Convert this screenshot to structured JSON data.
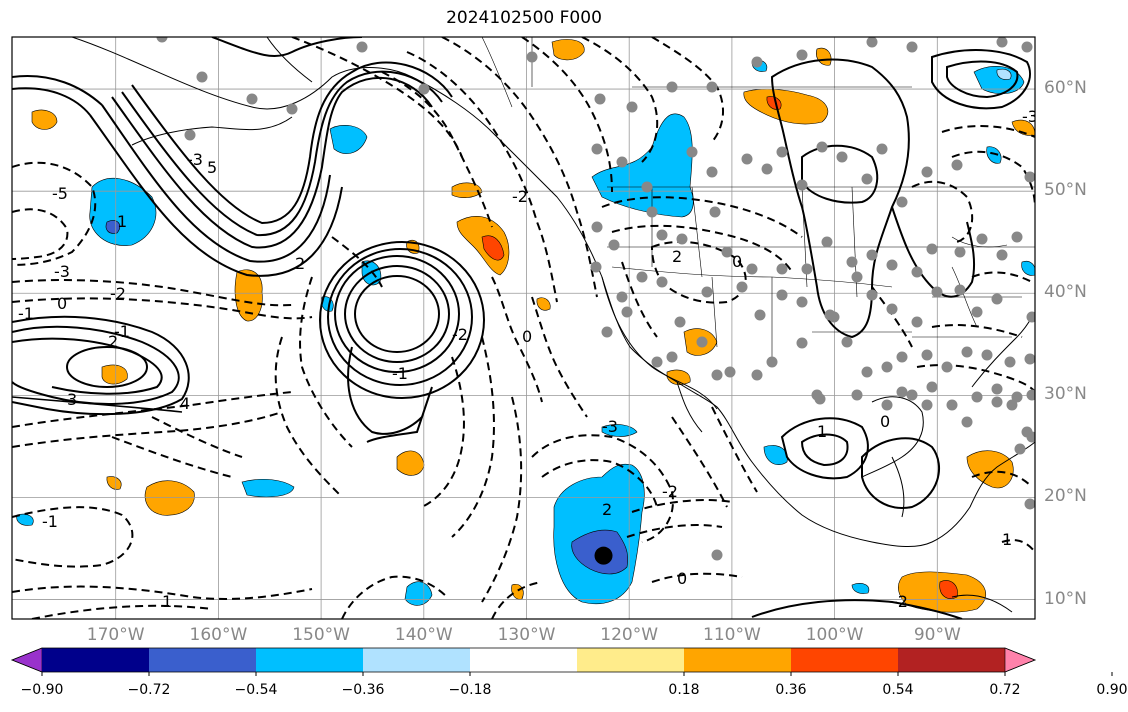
{
  "title": "2024102500 F000",
  "lat_labels": [
    {
      "text": "60°N",
      "lat": 60
    },
    {
      "text": "50°N",
      "lat": 50
    },
    {
      "text": "40°N",
      "lat": 40
    },
    {
      "text": "30°N",
      "lat": 30
    },
    {
      "text": "20°N",
      "lat": 20
    },
    {
      "text": "10°N",
      "lat": 10
    }
  ],
  "lon_labels": [
    {
      "text": "170°W",
      "lon": -170
    },
    {
      "text": "160°W",
      "lon": -160
    },
    {
      "text": "150°W",
      "lon": -150
    },
    {
      "text": "140°W",
      "lon": -140
    },
    {
      "text": "130°W",
      "lon": -130
    },
    {
      "text": "120°W",
      "lon": -120
    },
    {
      "text": "110°W",
      "lon": -110
    },
    {
      "text": "100°W",
      "lon": -100
    },
    {
      "text": "90°W",
      "lon": -90
    }
  ],
  "colorbar": {
    "colors": [
      "#9932cc",
      "#00008b",
      "#3a5fcd",
      "#00bfff",
      "#b0e2ff",
      "#ffffff",
      "#ffec8b",
      "#ffa500",
      "#ff4500",
      "#b22222",
      "#ff82ab"
    ],
    "labels": [
      "−0.90",
      "−0.72",
      "−0.54",
      "−0.36",
      "−0.18",
      "0.18",
      "0.36",
      "0.54",
      "0.72",
      "0.90"
    ]
  },
  "contour_labels": [
    "-5",
    "-3",
    "-2",
    "-1",
    "0",
    "1",
    "2",
    "3",
    "4",
    "5",
    "2",
    "-2",
    "-3",
    "-1",
    "0",
    "2",
    "-2",
    "0",
    "-3",
    "-1",
    "1",
    "-1",
    "1",
    "-2",
    "2",
    "0",
    "-2",
    "-3",
    "1",
    "0"
  ],
  "marked_location": {
    "lat": 14.3,
    "lon": -122.5
  }
}
